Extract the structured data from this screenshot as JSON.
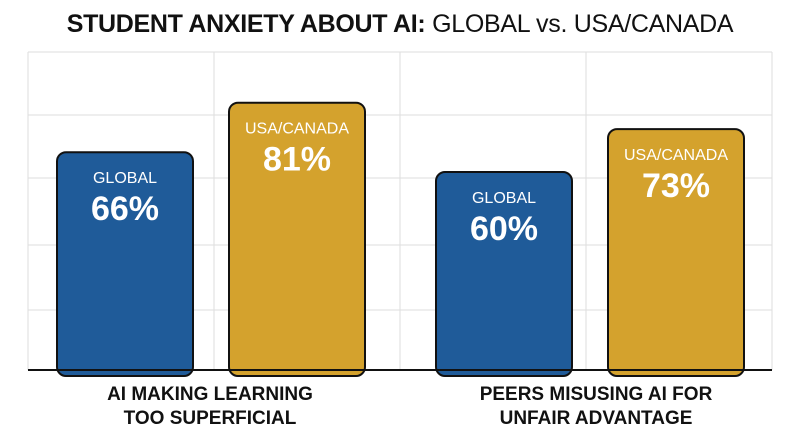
{
  "title": {
    "bold_part": "STUDENT ANXIETY ABOUT AI:",
    "light_part": "GLOBAL vs. USA/CANADA"
  },
  "colors": {
    "global": "#1f5b99",
    "usa_canada": "#d4a22d",
    "outline": "#111111",
    "grid": "#dddddd"
  },
  "chart_data": {
    "type": "bar",
    "categories": [
      "AI MAKING LEARNING\nTOO SUPERFICIAL",
      "PEERS MISUSING AI FOR\nUNFAIR ADVANTAGE"
    ],
    "series": [
      {
        "name": "GLOBAL",
        "values": [
          66,
          60
        ],
        "labels": [
          "66%",
          "60%"
        ]
      },
      {
        "name": "USA/CANADA",
        "values": [
          81,
          73
        ],
        "labels": [
          "81%",
          "73%"
        ]
      }
    ],
    "ylim": [
      0,
      100
    ],
    "grid": true
  }
}
